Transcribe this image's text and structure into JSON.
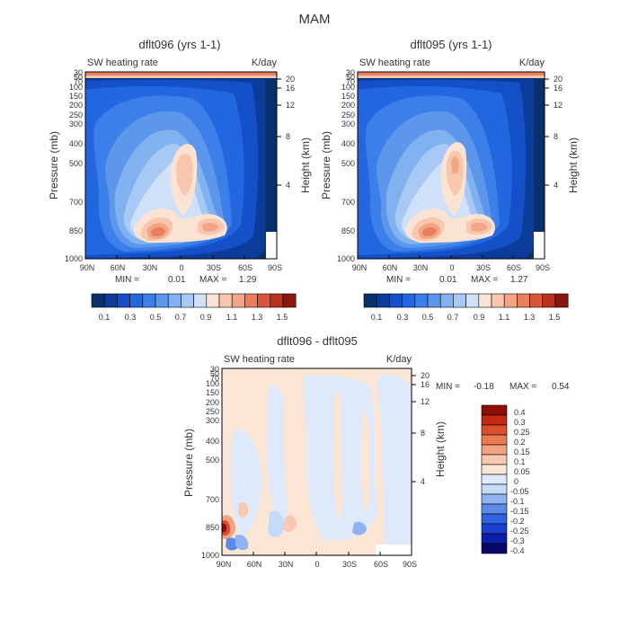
{
  "chart_data": {
    "type": "heatmap",
    "title": "MAM",
    "panels": [
      {
        "id": "dflt096",
        "title": "dflt096 (yrs 1-1)",
        "subtitle": "SW heating rate",
        "units": "K/day",
        "xlabel": "",
        "ylabel_left": "Pressure (mb)",
        "ylabel_right": "Height (km)",
        "x_ticks": [
          "90N",
          "60N",
          "30N",
          "0",
          "30S",
          "60S",
          "90S"
        ],
        "y_ticks": [
          "30",
          "50",
          "70",
          "100",
          "150",
          "200",
          "250",
          "300",
          "400",
          "500",
          "700",
          "850",
          "1000"
        ],
        "height_ticks": [
          "20",
          "16",
          "12",
          "8",
          "4"
        ],
        "stats": {
          "min_label": "MIN =",
          "min": "0.01",
          "max_label": "MAX =",
          "max": "1.29"
        },
        "colorbar": {
          "labels": [
            "0.1",
            "0.3",
            "0.5",
            "0.7",
            "0.9",
            "1.1",
            "1.3",
            "1.5"
          ],
          "levels": [
            0.1,
            0.2,
            0.3,
            0.4,
            0.5,
            0.6,
            0.7,
            0.8,
            0.9,
            1.0,
            1.1,
            1.2,
            1.3,
            1.4,
            1.5
          ]
        },
        "features": [
          {
            "name": "lower-tropospheric maximum 20N",
            "lat": 18,
            "pressure": 870,
            "value": 1.29
          },
          {
            "name": "mid-tropospheric maximum",
            "lat": 2,
            "pressure": 530,
            "value": 1.1
          },
          {
            "name": "secondary lower maximum 30S",
            "lat": -27,
            "pressure": 850,
            "value": 1.0
          },
          {
            "name": "stratospheric top layer",
            "lat": 0,
            "pressure": 30,
            "value": 1.3
          }
        ]
      },
      {
        "id": "dflt095",
        "title": "dflt095 (yrs 1-1)",
        "subtitle": "SW heating rate",
        "units": "K/day",
        "xlabel": "",
        "ylabel_left": "Pressure (mb)",
        "ylabel_right": "Height (km)",
        "x_ticks": [
          "90N",
          "60N",
          "30N",
          "0",
          "30S",
          "60S",
          "90S"
        ],
        "y_ticks": [
          "30",
          "50",
          "70",
          "100",
          "150",
          "200",
          "250",
          "300",
          "400",
          "500",
          "700",
          "850",
          "1000"
        ],
        "height_ticks": [
          "20",
          "16",
          "12",
          "8",
          "4"
        ],
        "stats": {
          "min_label": "MIN =",
          "min": "0.01",
          "max_label": "MAX =",
          "max": "1.27"
        },
        "colorbar": {
          "labels": [
            "0.1",
            "0.3",
            "0.5",
            "0.7",
            "0.9",
            "1.1",
            "1.3",
            "1.5"
          ],
          "levels": [
            0.1,
            0.2,
            0.3,
            0.4,
            0.5,
            0.6,
            0.7,
            0.8,
            0.9,
            1.0,
            1.1,
            1.2,
            1.3,
            1.4,
            1.5
          ]
        },
        "features": [
          {
            "name": "lower-tropospheric maximum 20N",
            "lat": 20,
            "pressure": 870,
            "value": 1.27
          },
          {
            "name": "mid-tropospheric maximum",
            "lat": 2,
            "pressure": 540,
            "value": 1.2
          },
          {
            "name": "secondary lower maximum 30S",
            "lat": -27,
            "pressure": 850,
            "value": 1.0
          },
          {
            "name": "stratospheric top layer",
            "lat": 0,
            "pressure": 30,
            "value": 1.3
          }
        ]
      },
      {
        "id": "diff",
        "title": "dflt096 - dflt095",
        "subtitle": "SW heating rate",
        "units": "K/day",
        "xlabel": "",
        "ylabel_left": "Pressure (mb)",
        "ylabel_right": "Height (km)",
        "x_ticks": [
          "90N",
          "60N",
          "30N",
          "0",
          "30S",
          "60S",
          "90S"
        ],
        "y_ticks": [
          "30",
          "50",
          "70",
          "100",
          "150",
          "200",
          "250",
          "300",
          "400",
          "500",
          "700",
          "850",
          "1000"
        ],
        "height_ticks": [
          "20",
          "16",
          "12",
          "8",
          "4"
        ],
        "stats": {
          "min_label": "MIN =",
          "min": "-0.18",
          "max_label": "MAX =",
          "max": "0.54"
        },
        "colorbar": {
          "labels": [
            "0.4",
            "0.3",
            "0.25",
            "0.2",
            "0.15",
            "0.1",
            "0.05",
            "0",
            "-0.05",
            "-0.1",
            "-0.15",
            "-0.2",
            "-0.25",
            "-0.3",
            "-0.4"
          ],
          "levels": [
            -0.4,
            -0.3,
            -0.25,
            -0.2,
            -0.15,
            -0.1,
            -0.05,
            0,
            0.05,
            0.1,
            0.15,
            0.2,
            0.25,
            0.3,
            0.4
          ]
        },
        "features": [
          {
            "name": "north polar lower maximum",
            "lat": 85,
            "pressure": 850,
            "value": 0.54
          },
          {
            "name": "north polar surface minimum",
            "lat": 80,
            "pressure": 950,
            "value": -0.18
          },
          {
            "name": "southern lower minimum",
            "lat": -40,
            "pressure": 870,
            "value": -0.1
          }
        ]
      }
    ]
  },
  "colors": {
    "shaded_cool": [
      "#08306b",
      "#0b3c99",
      "#1450c8",
      "#2266e0",
      "#3d7fe8",
      "#5d97ec",
      "#82b1f0",
      "#a8c9f5",
      "#cfe0fb"
    ],
    "shaded_warm": [
      "#fbe3d3",
      "#f8c6ad",
      "#f3a586",
      "#ea7f5e",
      "#d9553b",
      "#b8321f",
      "#8a1610"
    ],
    "diff_palette": [
      "#08086b",
      "#0d1fa8",
      "#1a3fd0",
      "#2f63e3",
      "#5b8ae9",
      "#8fb3f0",
      "#c4daf7",
      "#deeafb",
      "#fbe6d6",
      "#f8c9b0",
      "#f3a383",
      "#ec7b55",
      "#dc4d2b",
      "#c22a14",
      "#8e0d09"
    ]
  }
}
